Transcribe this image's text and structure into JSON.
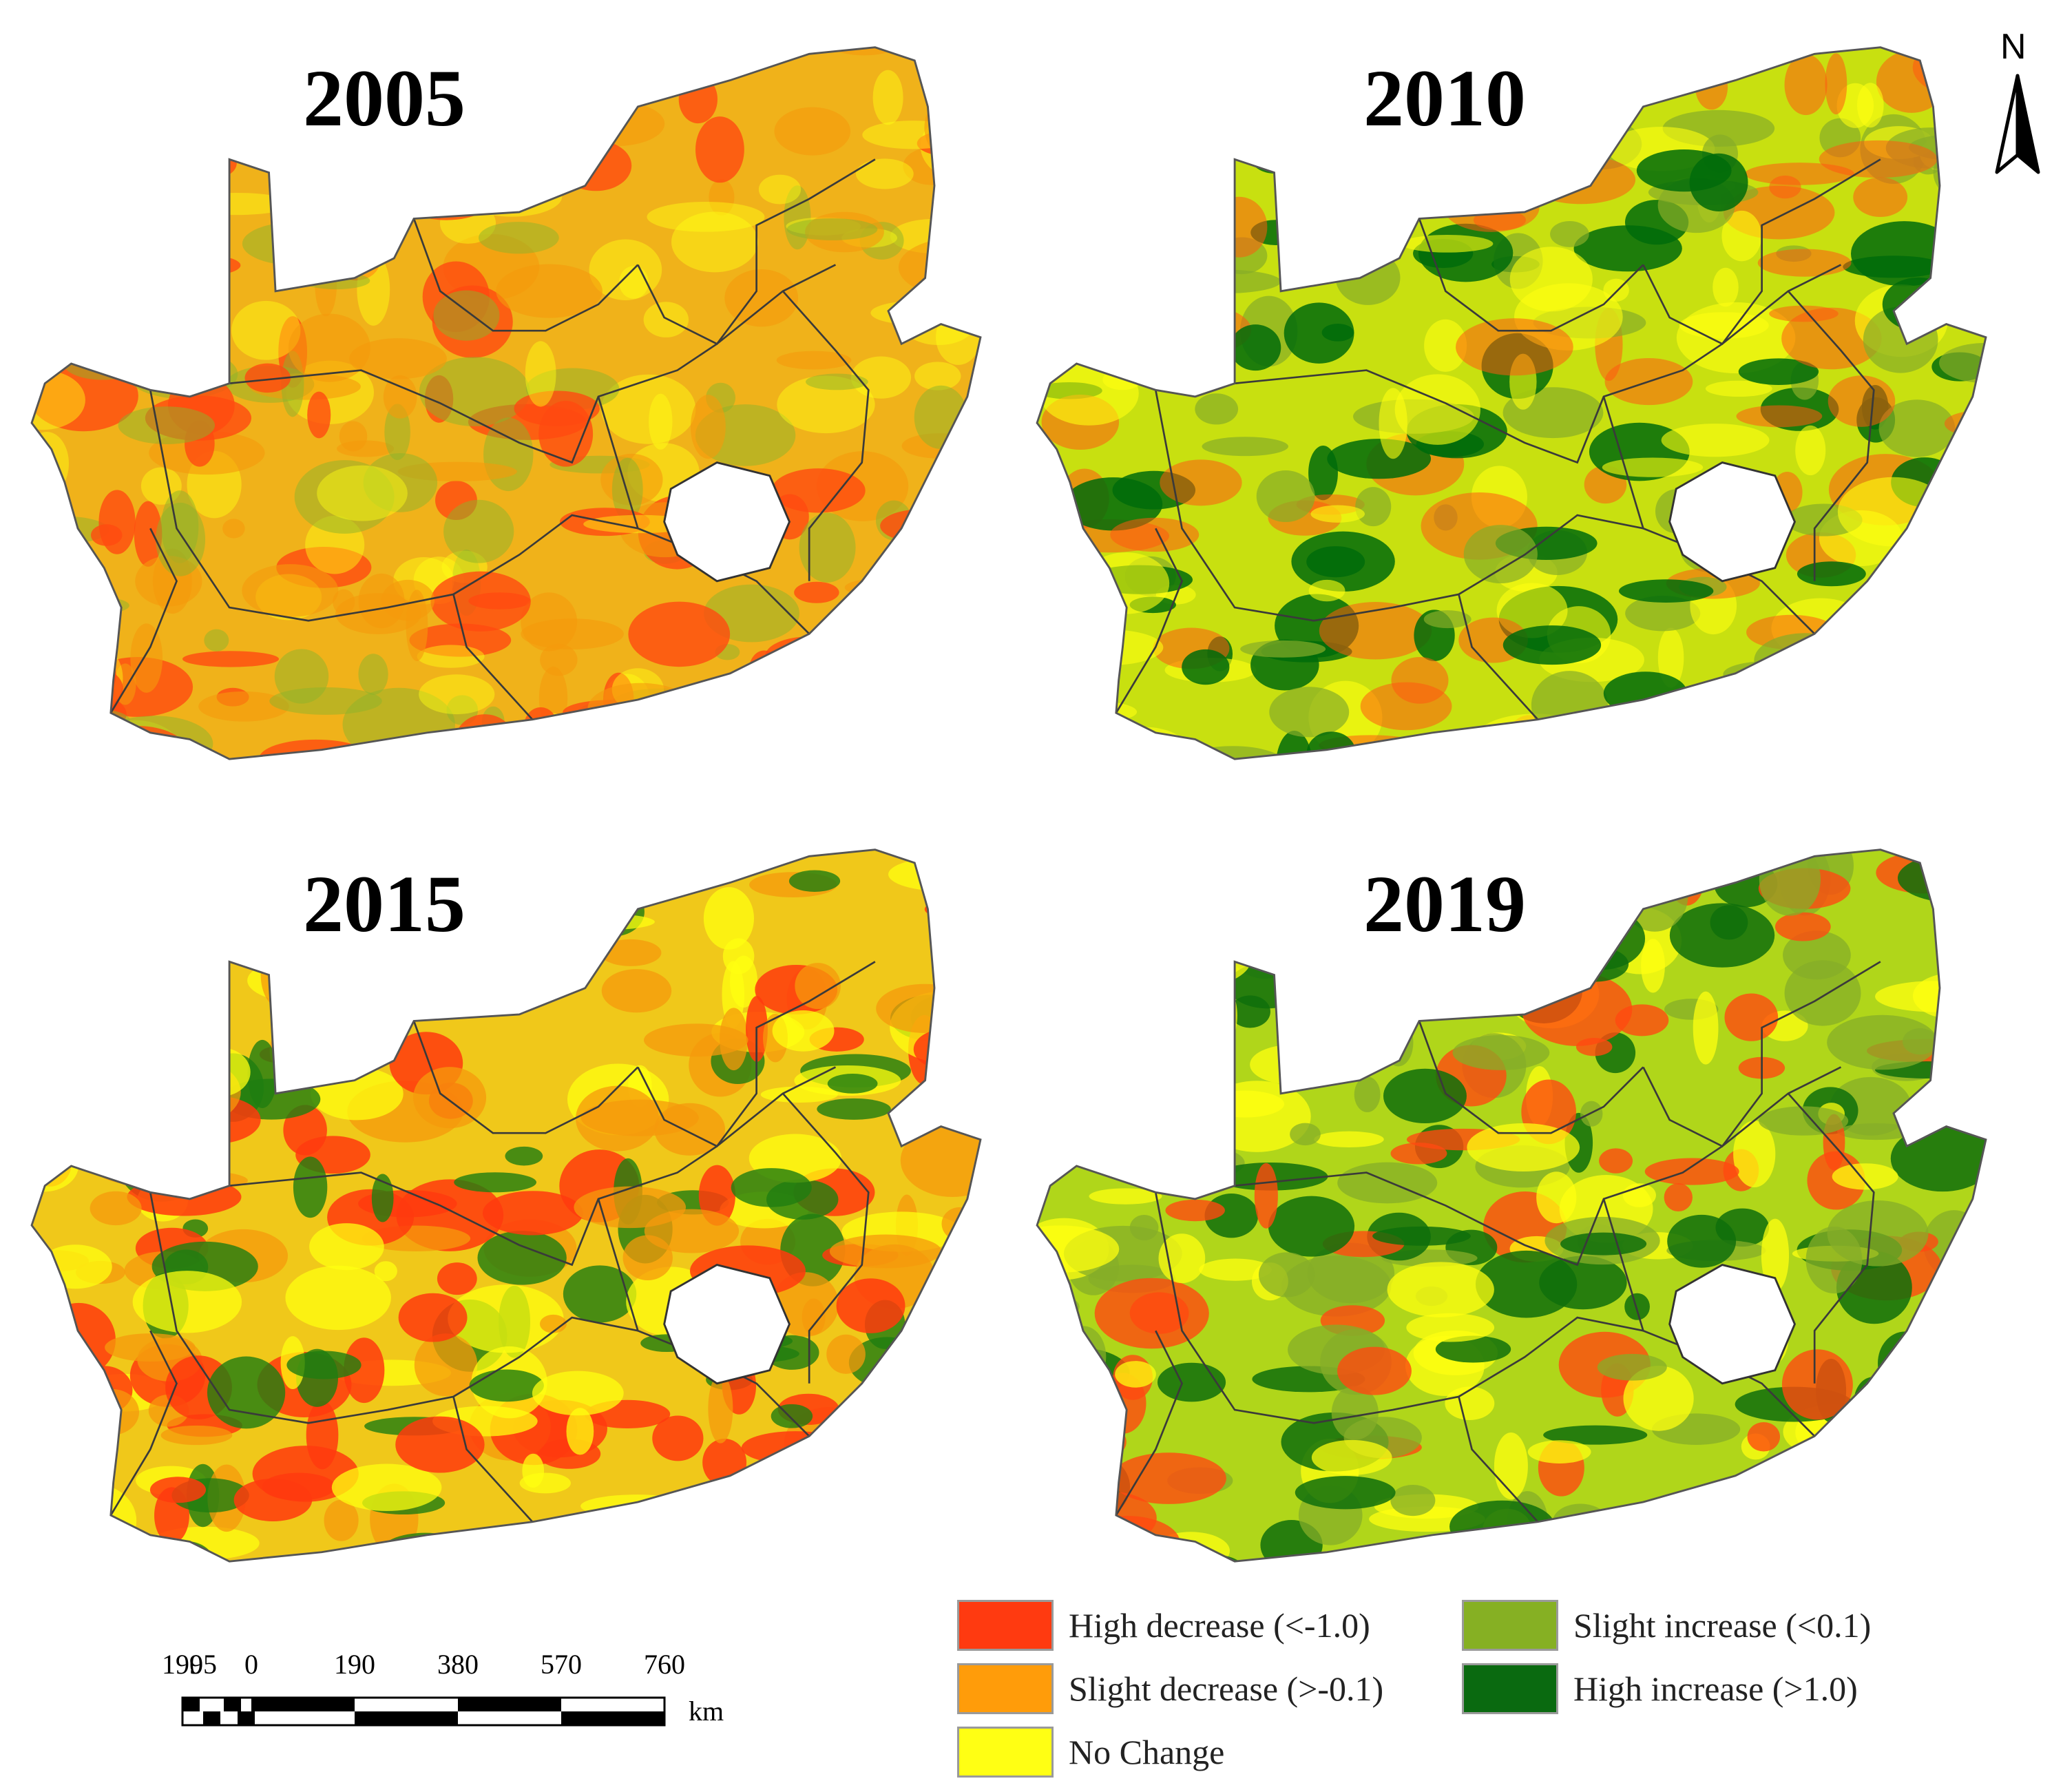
{
  "panels": [
    {
      "year": "2005",
      "fill": "#f0b21a",
      "overlay": [
        {
          "color": "#ff4a10",
          "opacity": 0.8
        },
        {
          "color": "#f59a0c",
          "opacity": 0.6
        },
        {
          "color": "#8cb42a",
          "opacity": 0.5
        },
        {
          "color": "#ffff14",
          "opacity": 0.45
        }
      ]
    },
    {
      "year": "2010",
      "fill": "#c8e010",
      "overlay": [
        {
          "color": "#006b0a",
          "opacity": 0.85
        },
        {
          "color": "#86ad28",
          "opacity": 0.7
        },
        {
          "color": "#ff5a10",
          "opacity": 0.55
        },
        {
          "color": "#ffff10",
          "opacity": 0.6
        }
      ]
    },
    {
      "year": "2015",
      "fill": "#f0c81a",
      "overlay": [
        {
          "color": "#ff3a0e",
          "opacity": 0.85
        },
        {
          "color": "#f59a0c",
          "opacity": 0.75
        },
        {
          "color": "#1f7d10",
          "opacity": 0.8
        },
        {
          "color": "#ffff10",
          "opacity": 0.75
        }
      ]
    },
    {
      "year": "2019",
      "fill": "#b0d61a",
      "overlay": [
        {
          "color": "#0f6e0c",
          "opacity": 0.85
        },
        {
          "color": "#86ad28",
          "opacity": 0.75
        },
        {
          "color": "#ff4a10",
          "opacity": 0.8
        },
        {
          "color": "#ffff10",
          "opacity": 0.75
        }
      ]
    }
  ],
  "north_arrow": {
    "label": "N"
  },
  "scale_bar": {
    "ticks": [
      "190",
      "95",
      "0",
      "190",
      "380",
      "570",
      "760"
    ],
    "unit": "km"
  },
  "legend": {
    "items": [
      {
        "label": "High decrease (<-1.0)",
        "color": "#ff3a10"
      },
      {
        "label": "Slight decrease (>-0.1)",
        "color": "#ff9c0a"
      },
      {
        "label": "No Change",
        "color": "#ffff14"
      },
      {
        "label": "Slight increase (<0.1)",
        "color": "#86b023"
      },
      {
        "label": "High increase (>1.0)",
        "color": "#0a6a10"
      }
    ]
  }
}
